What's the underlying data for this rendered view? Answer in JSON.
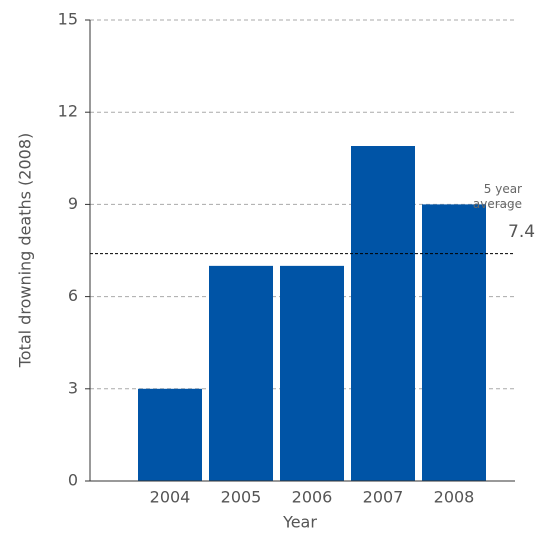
{
  "chart_data": {
    "type": "bar",
    "categories": [
      "2004",
      "2005",
      "2006",
      "2007",
      "2008"
    ],
    "values": [
      3,
      7,
      7,
      10.9,
      9
    ],
    "color": "#0054a6",
    "ylim": [
      0,
      15
    ],
    "yticks": [
      0,
      3,
      6,
      9,
      12,
      15
    ],
    "grid": true,
    "xlabel": "Year",
    "ylabel": "Total drowning deaths (2008)",
    "average": {
      "label": "5 year average",
      "value": 7.4
    }
  }
}
